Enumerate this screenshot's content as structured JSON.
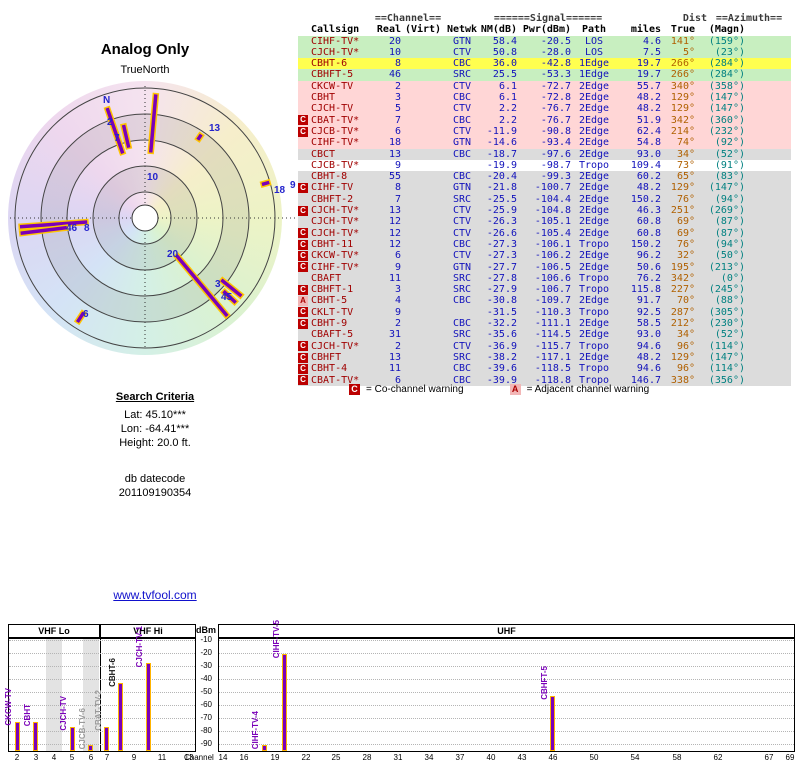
{
  "search": {
    "heading": "Search Criteria",
    "lat": "Lat: 45.10***",
    "lon": "Lon: -64.41***",
    "height": "Height: 20.0 ft.",
    "db_label": "db datecode",
    "db_code": "201109190354"
  },
  "link": {
    "text": "www.tvfool.com"
  },
  "colors": {
    "bar_fill": "#7a00b8",
    "bar_outline": "#ffc400",
    "link": "#1111cc",
    "warn_red": "#bb0000",
    "warn_pink": "#f2b6b6",
    "row_green": "#c8efc0",
    "row_yellow": "#ffff4f",
    "row_pink": "#ffd6d6",
    "row_gray": "#dcdcdc"
  },
  "table": {
    "header1": {
      "channel": "==Channel==",
      "signal": "======Signal======",
      "dist": "Dist",
      "azimuth": "==Azimuth=="
    },
    "header2": {
      "callsign": "Callsign",
      "real": "Real",
      "virt": "(Virt)",
      "netwk": "Netwk",
      "nm": "NM(dB)",
      "pwr": "Pwr(dBm)",
      "path": "Path",
      "miles": "miles",
      "true": "True",
      "magn": "(Magn)"
    },
    "legend": {
      "c_symbol": "C",
      "c_text": "= Co-channel warning",
      "a_symbol": "A",
      "a_text": "= Adjacent channel warning"
    },
    "rows": [
      {
        "w": "",
        "c": "CIHF-TV*",
        "r": "20",
        "n": "GTN",
        "s": "58.4",
        "p": "-20.5",
        "h": "LOS",
        "d": "4.6",
        "t": "141°",
        "m": "(159°)",
        "b": "green"
      },
      {
        "w": "",
        "c": "CJCH-TV*",
        "r": "10",
        "n": "CTV",
        "s": "50.8",
        "p": "-28.0",
        "h": "LOS",
        "d": "7.5",
        "t": "5°",
        "m": "(23°)",
        "b": "green"
      },
      {
        "w": "",
        "c": "CBHT-6",
        "r": "8",
        "n": "CBC",
        "s": "36.0",
        "p": "-42.8",
        "h": "1Edge",
        "d": "19.7",
        "t": "266°",
        "m": "(284°)",
        "b": "yellow"
      },
      {
        "w": "",
        "c": "CBHFT-5",
        "r": "46",
        "n": "SRC",
        "s": "25.5",
        "p": "-53.3",
        "h": "1Edge",
        "d": "19.7",
        "t": "266°",
        "m": "(284°)",
        "b": "green"
      },
      {
        "w": "",
        "c": "CKCW-TV",
        "r": "2",
        "n": "CTV",
        "s": "6.1",
        "p": "-72.7",
        "h": "2Edge",
        "d": "55.7",
        "t": "340°",
        "m": "(358°)",
        "b": "pink"
      },
      {
        "w": "",
        "c": "CBHT",
        "r": "3",
        "n": "CBC",
        "s": "6.1",
        "p": "-72.8",
        "h": "2Edge",
        "d": "48.2",
        "t": "129°",
        "m": "(147°)",
        "b": "pink"
      },
      {
        "w": "",
        "c": "CJCH-TV",
        "r": "5",
        "n": "CTV",
        "s": "2.2",
        "p": "-76.7",
        "h": "2Edge",
        "d": "48.2",
        "t": "129°",
        "m": "(147°)",
        "b": "pink"
      },
      {
        "w": "C",
        "c": "CBAT-TV*",
        "r": "7",
        "n": "CBC",
        "s": "2.2",
        "p": "-76.7",
        "h": "2Edge",
        "d": "51.9",
        "t": "342°",
        "m": "(360°)",
        "b": "pink"
      },
      {
        "w": "C",
        "c": "CJCB-TV*",
        "r": "6",
        "n": "CTV",
        "s": "-11.9",
        "p": "-90.8",
        "h": "2Edge",
        "d": "62.4",
        "t": "214°",
        "m": "(232°)",
        "b": "pink"
      },
      {
        "w": "",
        "c": "CIHF-TV*",
        "r": "18",
        "n": "GTN",
        "s": "-14.6",
        "p": "-93.4",
        "h": "2Edge",
        "d": "54.8",
        "t": "74°",
        "m": "(92°)",
        "b": "pink"
      },
      {
        "w": "",
        "c": "CBCT",
        "r": "13",
        "n": "CBC",
        "s": "-18.7",
        "p": "-97.6",
        "h": "2Edge",
        "d": "93.0",
        "t": "34°",
        "m": "(52°)",
        "b": "gray"
      },
      {
        "w": "",
        "c": "CJCB-TV*",
        "r": "9",
        "n": "",
        "s": "-19.9",
        "p": "-98.7",
        "h": "Tropo",
        "d": "109.4",
        "t": "73°",
        "m": "(91°)",
        "b": "white"
      },
      {
        "w": "",
        "c": "CBHT-8",
        "r": "55",
        "n": "CBC",
        "s": "-20.4",
        "p": "-99.3",
        "h": "2Edge",
        "d": "60.2",
        "t": "65°",
        "m": "(83°)",
        "b": "gray"
      },
      {
        "w": "C",
        "c": "CIHF-TV",
        "r": "8",
        "n": "GTN",
        "s": "-21.8",
        "p": "-100.7",
        "h": "2Edge",
        "d": "48.2",
        "t": "129°",
        "m": "(147°)",
        "b": "gray"
      },
      {
        "w": "",
        "c": "CBHFT-2",
        "r": "7",
        "n": "SRC",
        "s": "-25.5",
        "p": "-104.4",
        "h": "2Edge",
        "d": "150.2",
        "t": "76°",
        "m": "(94°)",
        "b": "gray"
      },
      {
        "w": "C",
        "c": "CJCH-TV*",
        "r": "13",
        "n": "CTV",
        "s": "-25.9",
        "p": "-104.8",
        "h": "2Edge",
        "d": "46.3",
        "t": "251°",
        "m": "(269°)",
        "b": "gray"
      },
      {
        "w": "",
        "c": "CJCH-TV*",
        "r": "12",
        "n": "CTV",
        "s": "-26.3",
        "p": "-105.1",
        "h": "2Edge",
        "d": "60.8",
        "t": "69°",
        "m": "(87°)",
        "b": "gray"
      },
      {
        "w": "C",
        "c": "CJCH-TV*",
        "r": "12",
        "n": "CTV",
        "s": "-26.6",
        "p": "-105.4",
        "h": "2Edge",
        "d": "60.8",
        "t": "69°",
        "m": "(87°)",
        "b": "gray"
      },
      {
        "w": "C",
        "c": "CBHT-11",
        "r": "12",
        "n": "CBC",
        "s": "-27.3",
        "p": "-106.1",
        "h": "Tropo",
        "d": "150.2",
        "t": "76°",
        "m": "(94°)",
        "b": "gray"
      },
      {
        "w": "C",
        "c": "CKCW-TV*",
        "r": "6",
        "n": "CTV",
        "s": "-27.3",
        "p": "-106.2",
        "h": "2Edge",
        "d": "96.2",
        "t": "32°",
        "m": "(50°)",
        "b": "gray"
      },
      {
        "w": "C",
        "c": "CIHF-TV*",
        "r": "9",
        "n": "GTN",
        "s": "-27.7",
        "p": "-106.5",
        "h": "2Edge",
        "d": "50.6",
        "t": "195°",
        "m": "(213°)",
        "b": "gray"
      },
      {
        "w": "",
        "c": "CBAFT",
        "r": "11",
        "n": "SRC",
        "s": "-27.8",
        "p": "-106.6",
        "h": "Tropo",
        "d": "76.2",
        "t": "342°",
        "m": "(0°)",
        "b": "gray"
      },
      {
        "w": "C",
        "c": "CBHFT-1",
        "r": "3",
        "n": "SRC",
        "s": "-27.9",
        "p": "-106.7",
        "h": "Tropo",
        "d": "115.8",
        "t": "227°",
        "m": "(245°)",
        "b": "gray"
      },
      {
        "w": "A",
        "c": "CBHT-5",
        "r": "4",
        "n": "CBC",
        "s": "-30.8",
        "p": "-109.7",
        "h": "2Edge",
        "d": "91.7",
        "t": "70°",
        "m": "(88°)",
        "b": "gray"
      },
      {
        "w": "C",
        "c": "CKLT-TV",
        "r": "9",
        "n": "",
        "s": "-31.5",
        "p": "-110.3",
        "h": "Tropo",
        "d": "92.5",
        "t": "287°",
        "m": "(305°)",
        "b": "gray"
      },
      {
        "w": "C",
        "c": "CBHT-9",
        "r": "2",
        "n": "CBC",
        "s": "-32.2",
        "p": "-111.1",
        "h": "2Edge",
        "d": "58.5",
        "t": "212°",
        "m": "(230°)",
        "b": "gray"
      },
      {
        "w": "",
        "c": "CBAFT-5",
        "r": "31",
        "n": "SRC",
        "s": "-35.6",
        "p": "-114.5",
        "h": "2Edge",
        "d": "93.0",
        "t": "34°",
        "m": "(52°)",
        "b": "gray"
      },
      {
        "w": "C",
        "c": "CJCH-TV*",
        "r": "2",
        "n": "CTV",
        "s": "-36.9",
        "p": "-115.7",
        "h": "Tropo",
        "d": "94.6",
        "t": "96°",
        "m": "(114°)",
        "b": "gray"
      },
      {
        "w": "C",
        "c": "CBHFT",
        "r": "13",
        "n": "SRC",
        "s": "-38.2",
        "p": "-117.1",
        "h": "2Edge",
        "d": "48.2",
        "t": "129°",
        "m": "(147°)",
        "b": "gray"
      },
      {
        "w": "C",
        "c": "CBHT-4",
        "r": "11",
        "n": "CBC",
        "s": "-39.6",
        "p": "-118.5",
        "h": "Tropo",
        "d": "94.6",
        "t": "96°",
        "m": "(114°)",
        "b": "gray"
      },
      {
        "w": "C",
        "c": "CBAT-TV*",
        "r": "6",
        "n": "CBC",
        "s": "-39.9",
        "p": "-118.8",
        "h": "Tropo",
        "d": "146.7",
        "t": "338°",
        "m": "(356°)",
        "b": "gray"
      }
    ]
  },
  "chart_data": [
    {
      "type": "radar",
      "title": "Analog Only",
      "north_label": "TrueNorth",
      "rings": 5,
      "spokes": [
        {
          "channel": "10",
          "azimuth": 5,
          "r0": 0.5,
          "r1": 0.96
        },
        {
          "channel": "2",
          "azimuth": 341,
          "r0": 0.52,
          "r1": 0.9
        },
        {
          "channel": "7",
          "azimuth": 347,
          "r0": 0.55,
          "r1": 0.74
        },
        {
          "channel": "8",
          "azimuth": 266,
          "r0": 0.44,
          "r1": 0.97
        },
        {
          "channel": "46",
          "azimuth": 263,
          "r0": 0.6,
          "r1": 0.97
        },
        {
          "channel": "20",
          "azimuth": 140,
          "r0": 0.37,
          "r1": 0.99
        },
        {
          "channel": "5",
          "azimuth": 129,
          "r0": 0.75,
          "r1": 0.96
        },
        {
          "channel": "3",
          "azimuth": 133,
          "r0": 0.82,
          "r1": 0.96
        },
        {
          "channel": "6",
          "azimuth": 213,
          "r0": 0.86,
          "r1": 0.96
        },
        {
          "channel": "13",
          "azimuth": 34,
          "r0": 0.72,
          "r1": 0.78
        },
        {
          "channel": "18",
          "azimuth": 74,
          "r0": 0.93,
          "r1": 1.0
        }
      ],
      "labels": [
        {
          "text": "N",
          "x": 95,
          "y": 22
        },
        {
          "text": "2",
          "x": 99,
          "y": 44
        },
        {
          "text": "7",
          "x": 106,
          "y": 60
        },
        {
          "text": "13",
          "x": 201,
          "y": 50
        },
        {
          "text": "10",
          "x": 139,
          "y": 99
        },
        {
          "text": "18",
          "x": 266,
          "y": 112
        },
        {
          "text": "9",
          "x": 282,
          "y": 107
        },
        {
          "text": "46",
          "x": 58,
          "y": 150
        },
        {
          "text": "8",
          "x": 76,
          "y": 150
        },
        {
          "text": "20",
          "x": 159,
          "y": 176
        },
        {
          "text": "3",
          "x": 207,
          "y": 206
        },
        {
          "text": "45",
          "x": 213,
          "y": 219
        },
        {
          "text": "6",
          "x": 75,
          "y": 236
        }
      ]
    },
    {
      "type": "bar",
      "ylabel": "dBm",
      "xlabel": "Channel",
      "ylim": [
        -90,
        -10
      ],
      "yticks": [
        -10,
        -20,
        -30,
        -40,
        -50,
        -60,
        -70,
        -80,
        -90
      ],
      "bands": [
        {
          "label": "VHF Lo",
          "ch_min": 2,
          "ch_max": 6,
          "ticks": [
            2,
            3,
            4,
            5,
            6
          ]
        },
        {
          "label": "VHF Hi",
          "ch_min": 7,
          "ch_max": 13,
          "ticks": [
            7,
            9,
            11,
            13
          ]
        },
        {
          "label": "UHF",
          "ch_min": 14,
          "ch_max": 69,
          "ticks": [
            14,
            16,
            19,
            22,
            25,
            28,
            31,
            34,
            37,
            40,
            43,
            46,
            50,
            54,
            58,
            62,
            67,
            69
          ]
        }
      ],
      "gray_stripes": [
        4,
        6
      ],
      "bars": [
        {
          "label": "CKCW-TV",
          "channel": 2,
          "dbm": -72.7,
          "label_color": "purple"
        },
        {
          "label": "CBHT",
          "channel": 3,
          "dbm": -72.8,
          "label_color": "purple"
        },
        {
          "label": "CJCH-TV",
          "channel": 5,
          "dbm": -76.7,
          "label_color": "purple"
        },
        {
          "label": "CJCB-TV-6",
          "channel": 6,
          "dbm": -90.8,
          "label_color": "gray"
        },
        {
          "label": "CBAT-TV-2",
          "channel": 7,
          "dbm": -76.7,
          "label_color": "gray"
        },
        {
          "label": "CBHT-6",
          "channel": 8,
          "dbm": -42.8,
          "label_color": "black"
        },
        {
          "label": "CJCH-TV-1",
          "channel": 10,
          "dbm": -28.0,
          "label_color": "purple"
        },
        {
          "label": "CIHF-TV-4",
          "channel": 18,
          "dbm": -93.4,
          "label_color": "purple"
        },
        {
          "label": "CIHF-TV-5",
          "channel": 20,
          "dbm": -20.5,
          "label_color": "purple"
        },
        {
          "label": "CBHFT-5",
          "channel": 46,
          "dbm": -53.3,
          "label_color": "purple"
        }
      ]
    }
  ]
}
